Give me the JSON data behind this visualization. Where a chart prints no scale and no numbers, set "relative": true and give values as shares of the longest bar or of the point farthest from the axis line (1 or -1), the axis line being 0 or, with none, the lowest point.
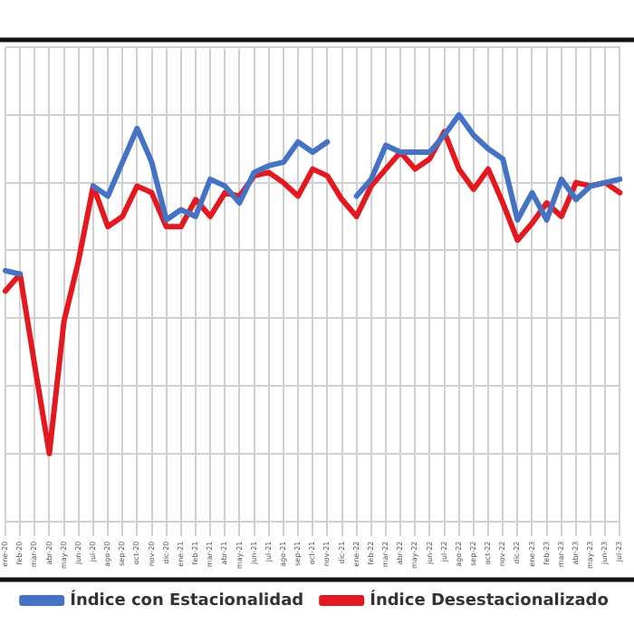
{
  "chart_data": {
    "type": "line",
    "relative": true,
    "grid": true,
    "legend": "bottom",
    "marker": "none",
    "line_style": "solid",
    "categories": [
      "ene-20",
      "feb-20",
      "mar-20",
      "abr-20",
      "may-20",
      "jun-20",
      "jul-20",
      "ago-20",
      "sep-20",
      "oct-20",
      "nov-20",
      "dic-20",
      "ene-21",
      "feb-21",
      "mar-21",
      "abr-21",
      "may-21",
      "jun-21",
      "jul-21",
      "ago-21",
      "sep-21",
      "oct-21",
      "nov-21",
      "dic-21",
      "ene-22",
      "feb-22",
      "mar-22",
      "abr-22",
      "may-22",
      "jun-22",
      "jul-22",
      "ago-22",
      "sep-22",
      "oct-22",
      "nov-22",
      "dic-22",
      "ene-23",
      "feb-23",
      "mar-23",
      "abr-23",
      "may-23",
      "jun-23",
      "jul-23"
    ],
    "series": [
      {
        "name": "Índice con Estacionalidad",
        "color": "#4472c4",
        "values": [
          0.54,
          0.53,
          null,
          null,
          null,
          null,
          0.79,
          0.76,
          0.86,
          0.96,
          0.86,
          0.69,
          0.72,
          0.7,
          0.81,
          0.79,
          0.74,
          0.83,
          0.85,
          0.86,
          0.92,
          0.89,
          0.92,
          null,
          0.76,
          0.81,
          0.91,
          0.89,
          0.89,
          0.89,
          0.94,
          1,
          0.94,
          0.9,
          0.87,
          0.69,
          0.77,
          0.69,
          0.81,
          0.75,
          0.79,
          0.8,
          0.81
        ]
      },
      {
        "name": "Índice Desestacionalizado",
        "color": "#e3191f",
        "values": [
          0.48,
          0.53,
          0.26,
          0,
          0.39,
          0.57,
          0.79,
          0.67,
          0.7,
          0.79,
          0.77,
          0.67,
          0.67,
          0.75,
          0.7,
          0.77,
          0.76,
          0.82,
          0.83,
          0.8,
          0.76,
          0.84,
          0.82,
          0.75,
          0.7,
          0.79,
          0.84,
          0.89,
          0.84,
          0.87,
          0.95,
          0.84,
          0.78,
          0.84,
          0.74,
          0.63,
          0.68,
          0.74,
          0.7,
          0.8,
          0.79,
          0.8,
          0.77
        ]
      }
    ]
  }
}
